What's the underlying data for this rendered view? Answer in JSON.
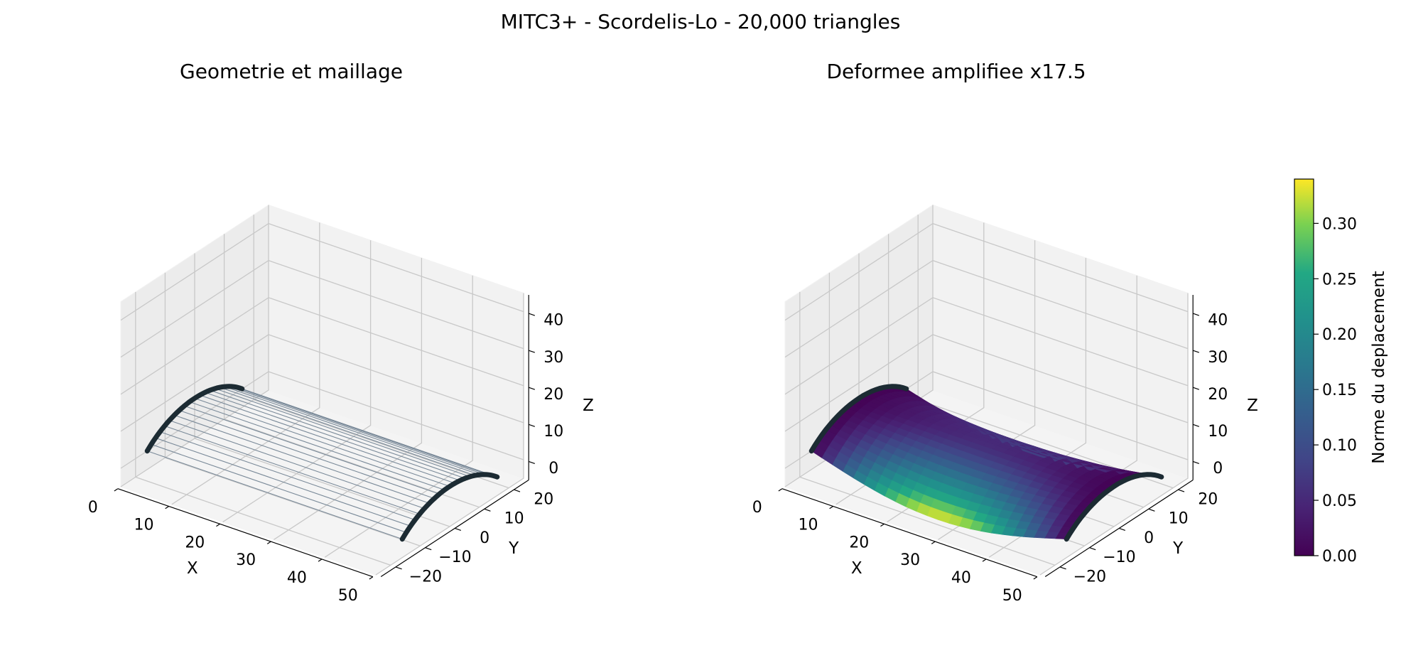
{
  "figure": {
    "suptitle": "MITC3+ - Scordelis-Lo - 20,000 triangles"
  },
  "chart_data": [
    {
      "type": "3d-wireframe",
      "title": "Geometrie et maillage",
      "xlabel": "X",
      "ylabel": "Y",
      "zlabel": "Z",
      "xticks": [
        "0",
        "10",
        "20",
        "30",
        "40",
        "50"
      ],
      "yticks": [
        "−20",
        "−10",
        "0",
        "10",
        "20"
      ],
      "zticks": [
        "0",
        "10",
        "20",
        "30",
        "40"
      ],
      "xlim": [
        0,
        50
      ],
      "ylim": [
        -25,
        25
      ],
      "zlim": [
        -5,
        45
      ],
      "shell": {
        "length": 50,
        "radius": 25,
        "half_angle_deg": 40,
        "longitudinal_lines": 21,
        "edge_color": "#1c2b33",
        "mesh_color": "#7a8a99"
      },
      "grid": true
    },
    {
      "type": "3d-surface",
      "title": "Deformee amplifiee x17.5",
      "xlabel": "X",
      "ylabel": "Y",
      "zlabel": "Z",
      "xticks": [
        "0",
        "10",
        "20",
        "30",
        "40",
        "50"
      ],
      "yticks": [
        "−20",
        "−10",
        "0",
        "10",
        "20"
      ],
      "zticks": [
        "0",
        "10",
        "20",
        "30",
        "40"
      ],
      "xlim": [
        0,
        50
      ],
      "ylim": [
        -25,
        25
      ],
      "zlim": [
        -5,
        45
      ],
      "amplification": 17.5,
      "colormap": "viridis",
      "colorbar": {
        "label": "Norme du deplacement",
        "ticks": [
          "0.00",
          "0.05",
          "0.10",
          "0.15",
          "0.20",
          "0.25",
          "0.30"
        ],
        "range": [
          0,
          0.34
        ]
      },
      "grid": true
    }
  ]
}
